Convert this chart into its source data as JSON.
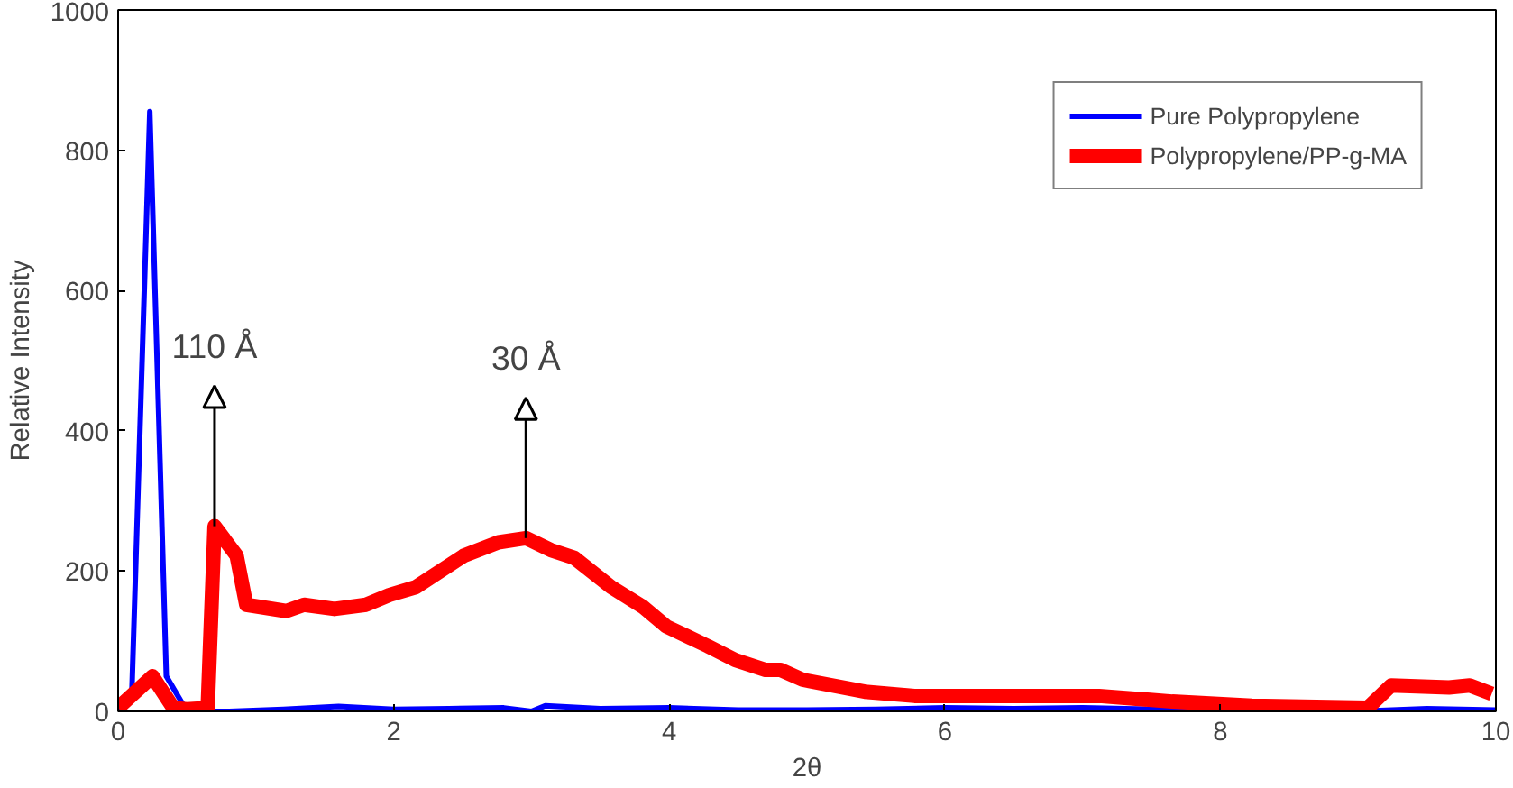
{
  "chart_data": {
    "type": "line",
    "xlabel": "2θ",
    "ylabel": "Relative Intensity",
    "xlim": [
      0,
      10
    ],
    "ylim": [
      0,
      1000
    ],
    "xticks": [
      0,
      2,
      4,
      6,
      8,
      10
    ],
    "yticks": [
      0,
      200,
      400,
      600,
      800,
      1000
    ],
    "grid": false,
    "legend": "top right",
    "marker": "none",
    "line_style": "solid",
    "series": [
      {
        "name": "Pure Polypropylene",
        "color": "#0000ff",
        "x": [
          0,
          0.1,
          0.23,
          0.35,
          0.5,
          0.8,
          1.2,
          1.6,
          2.0,
          2.4,
          2.8,
          3.0,
          3.1,
          3.5,
          4.0,
          4.5,
          5.0,
          5.5,
          6.0,
          6.5,
          7.0,
          7.5,
          8.0,
          8.5,
          9.0,
          9.5,
          10
        ],
        "values": [
          0,
          30,
          855,
          50,
          0,
          0,
          3,
          7,
          3,
          4,
          5,
          0,
          8,
          4,
          5,
          2,
          2,
          3,
          5,
          4,
          5,
          3,
          null,
          null,
          null,
          4,
          2
        ]
      },
      {
        "name": "Polypropylene/PP-g-MA",
        "color": "#ff0000",
        "x": [
          0,
          0.25,
          0.4,
          0.5,
          0.65,
          0.7,
          0.86,
          0.93,
          1.22,
          1.35,
          1.57,
          1.8,
          1.97,
          2.16,
          2.51,
          2.76,
          2.96,
          3.14,
          3.31,
          3.58,
          3.81,
          3.98,
          4.28,
          4.48,
          4.7,
          4.81,
          4.97,
          5.42,
          5.78,
          6.53,
          7.12,
          7.65,
          8.23,
          9.07,
          9.24,
          9.66,
          9.81,
          9.97
        ],
        "values": [
          5,
          50,
          5,
          3,
          5,
          264,
          222,
          152,
          143,
          152,
          146,
          152,
          166,
          177,
          222,
          241,
          247,
          230,
          219,
          177,
          149,
          121,
          93,
          73,
          59,
          59,
          45,
          28,
          22,
          22,
          22,
          14,
          8,
          5,
          37,
          34,
          37,
          25
        ]
      }
    ],
    "annotations": [
      {
        "text": "110 Å",
        "x": 0.7,
        "y": 264
      },
      {
        "text": "30 Å",
        "x": 2.96,
        "y": 247
      }
    ]
  }
}
